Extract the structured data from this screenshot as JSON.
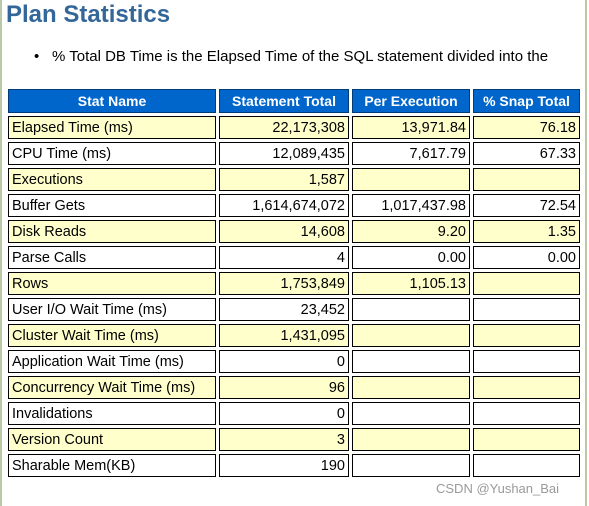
{
  "title": "Plan Statistics",
  "note": "% Total DB Time is the Elapsed Time of the SQL statement divided into the",
  "columns": [
    "Stat Name",
    "Statement Total",
    "Per Execution",
    "% Snap Total"
  ],
  "rows": [
    {
      "name": "Elapsed Time (ms)",
      "total": "22,173,308",
      "per_exec": "13,971.84",
      "snap": "76.18"
    },
    {
      "name": "CPU Time (ms)",
      "total": "12,089,435",
      "per_exec": "7,617.79",
      "snap": "67.33"
    },
    {
      "name": "Executions",
      "total": "1,587",
      "per_exec": "",
      "snap": ""
    },
    {
      "name": "Buffer Gets",
      "total": "1,614,674,072",
      "per_exec": "1,017,437.98",
      "snap": "72.54"
    },
    {
      "name": "Disk Reads",
      "total": "14,608",
      "per_exec": "9.20",
      "snap": "1.35"
    },
    {
      "name": "Parse Calls",
      "total": "4",
      "per_exec": "0.00",
      "snap": "0.00"
    },
    {
      "name": "Rows",
      "total": "1,753,849",
      "per_exec": "1,105.13",
      "snap": ""
    },
    {
      "name": "User I/O Wait Time (ms)",
      "total": "23,452",
      "per_exec": "",
      "snap": ""
    },
    {
      "name": "Cluster Wait Time (ms)",
      "total": "1,431,095",
      "per_exec": "",
      "snap": ""
    },
    {
      "name": "Application Wait Time (ms)",
      "total": "0",
      "per_exec": "",
      "snap": ""
    },
    {
      "name": "Concurrency Wait Time (ms)",
      "total": "96",
      "per_exec": "",
      "snap": ""
    },
    {
      "name": "Invalidations",
      "total": "0",
      "per_exec": "",
      "snap": ""
    },
    {
      "name": "Version Count",
      "total": "3",
      "per_exec": "",
      "snap": ""
    },
    {
      "name": "Sharable Mem(KB)",
      "total": "190",
      "per_exec": "",
      "snap": ""
    }
  ],
  "watermark": "CSDN @Yushan_Bai",
  "colors": {
    "header_bg": "#0066cc",
    "title": "#336699",
    "highlight_row": "#ffffcc"
  }
}
